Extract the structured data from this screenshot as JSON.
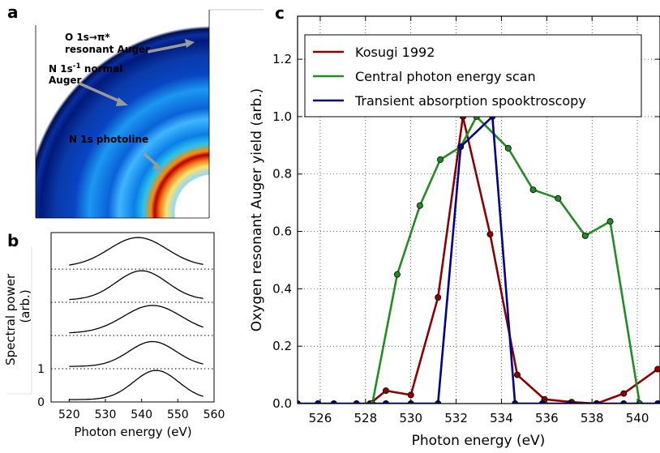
{
  "panel_a": {
    "letter": "a",
    "annotations": [
      {
        "line1": "O 1s→π*",
        "line2": "resonant Auger"
      },
      {
        "line1": "N 1s",
        "sup": "-1",
        "line1b": " normal",
        "line2": "Auger"
      },
      {
        "line1": "N 1s photoline",
        "line2": ""
      }
    ]
  },
  "panel_b": {
    "letter": "b",
    "xlabel": "Photon energy (eV)",
    "ylabel_line1": "Spectral power",
    "ylabel_line2": "(arb.)",
    "xticks": [
      "520",
      "530",
      "540",
      "550",
      "560"
    ],
    "yticks": [
      "0",
      "1"
    ],
    "xlim": [
      515,
      560
    ],
    "ylim": [
      0,
      5.1
    ],
    "curves": [
      {
        "offset": 0,
        "center": 544,
        "width": 6.2,
        "amp": 1.0
      },
      {
        "offset": 1,
        "center": 543,
        "width": 6.5,
        "amp": 0.85
      },
      {
        "offset": 2,
        "center": 543,
        "width": 8,
        "amp": 0.95
      },
      {
        "offset": 3,
        "center": 540,
        "width": 7,
        "amp": 1.0
      },
      {
        "offset": 4,
        "center": 539,
        "width": 8,
        "amp": 1.0
      }
    ]
  },
  "chart_data": {
    "type": "line",
    "letter": "c",
    "xlabel": "Photon energy (eV)",
    "ylabel": "Oxygen resonant Auger yield (arb.)",
    "xlim": [
      525,
      541
    ],
    "ylim": [
      0,
      1.35
    ],
    "xticks": [
      "526",
      "528",
      "530",
      "532",
      "534",
      "536",
      "538",
      "540"
    ],
    "yticks": [
      "0.0",
      "0.2",
      "0.4",
      "0.6",
      "0.8",
      "1.0",
      "1.2"
    ],
    "grid": true,
    "legend_position": "top-left",
    "series": [
      {
        "name": "Kosugi 1992",
        "color": "#8b0000",
        "x": [
          528.2,
          528.9,
          530.0,
          531.2,
          532.3,
          533.5,
          534.7,
          535.9,
          537.1,
          538.2,
          539.4,
          540.9
        ],
        "y": [
          0.0,
          0.045,
          0.03,
          0.37,
          1.0,
          0.59,
          0.1,
          0.015,
          0.005,
          0.0,
          0.035,
          0.12
        ]
      },
      {
        "name": "Central photon energy scan",
        "color": "#228b22",
        "x": [
          528.3,
          529.4,
          530.4,
          531.3,
          532.2,
          532.9,
          534.3,
          535.4,
          536.5,
          537.7,
          538.8,
          540.1
        ],
        "y": [
          0.0,
          0.45,
          0.69,
          0.85,
          0.895,
          1.0,
          0.89,
          0.745,
          0.715,
          0.585,
          0.635,
          0.0
        ]
      },
      {
        "name": "Transient absorption spooktroscopy",
        "color": "#00008b",
        "x": [
          525.0,
          525.9,
          526.6,
          527.6,
          528.9,
          530.0,
          531.2,
          532.2,
          533.6,
          534.6,
          535.8,
          537.0,
          538.2,
          539.4,
          540.9
        ],
        "y": [
          0.0,
          0.0,
          0.0,
          0.0,
          0.0,
          0.0,
          0.0,
          0.895,
          1.0,
          0.0,
          0.0,
          0.0,
          0.0,
          0.0,
          0.0
        ]
      }
    ]
  }
}
